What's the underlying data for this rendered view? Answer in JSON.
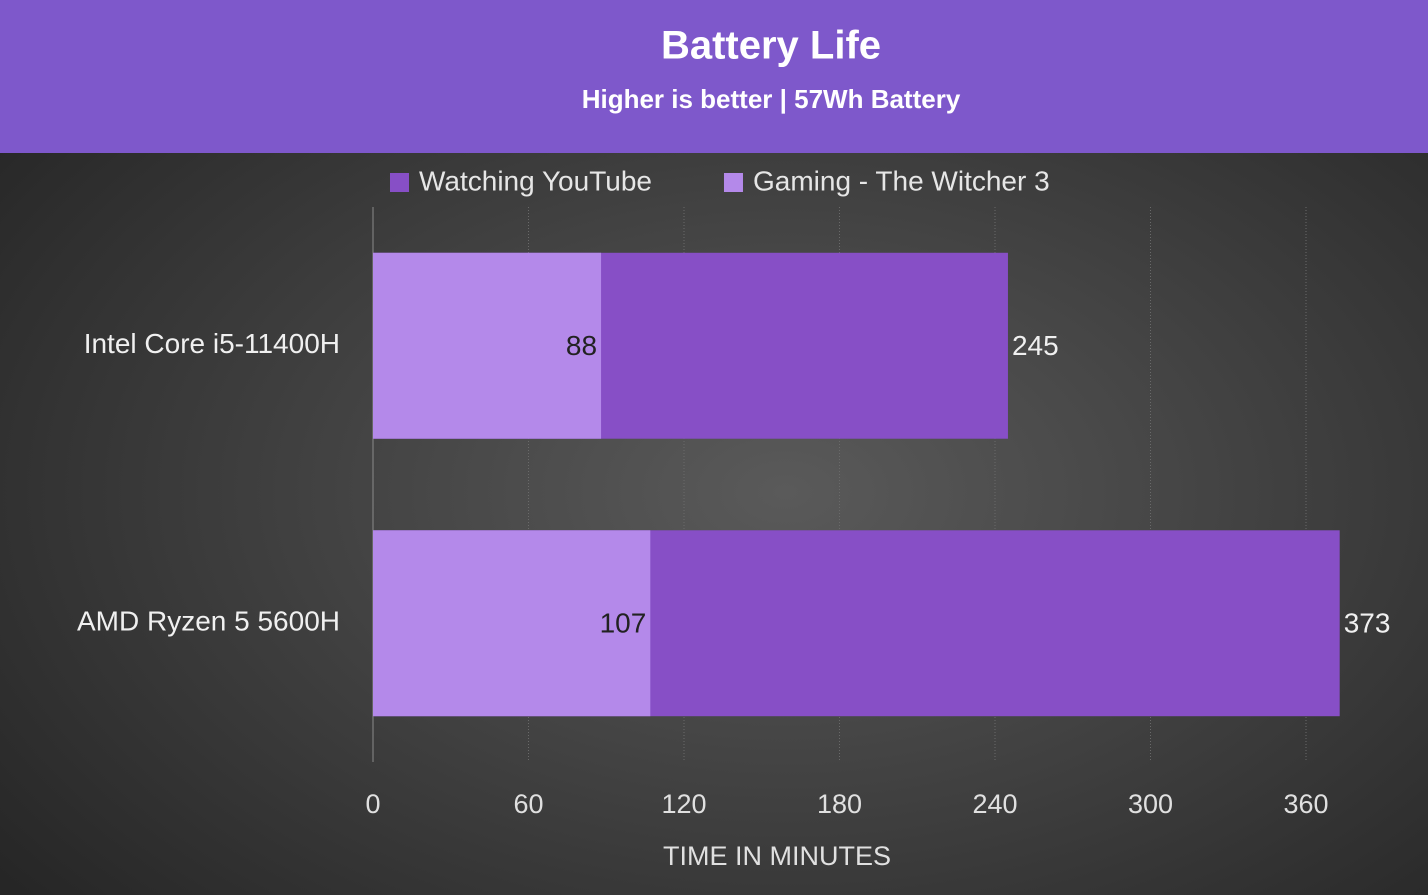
{
  "chart_data": {
    "type": "bar",
    "orientation": "horizontal",
    "barmode": "overlay",
    "title": "Battery Life",
    "subtitle": "Higher is better | 57Wh Battery",
    "categories": [
      "Intel Core i5-11400H",
      "AMD Ryzen 5 5600H"
    ],
    "series": [
      {
        "name": "Watching YouTube",
        "color": "#874fc6",
        "values": [
          245,
          373
        ]
      },
      {
        "name": "Gaming - The Witcher 3",
        "color": "#b489ea",
        "values": [
          88,
          107
        ]
      }
    ],
    "xlabel": "TIME IN MINUTES",
    "xlim": [
      0,
      375
    ],
    "xticks": [
      0,
      60,
      120,
      180,
      240,
      300,
      360
    ],
    "grid": true,
    "legend": "top"
  }
}
